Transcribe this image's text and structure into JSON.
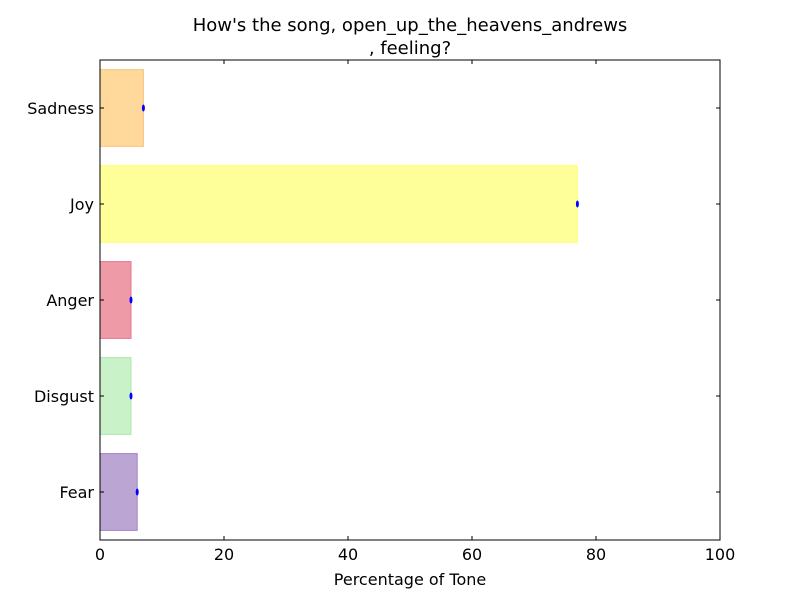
{
  "chart_data": {
    "type": "bar",
    "orientation": "horizontal",
    "title_lines": [
      "How's the song, open_up_the_heavens_andrews",
      ", feeling?"
    ],
    "xlabel": "Percentage of Tone",
    "ylabel": "",
    "xlim": [
      0,
      100
    ],
    "xticks": [
      "0",
      "20",
      "40",
      "60",
      "80",
      "100"
    ],
    "categories": [
      "Sadness",
      "Joy",
      "Anger",
      "Disgust",
      "Fear"
    ],
    "values": [
      7,
      77,
      5,
      5,
      6
    ],
    "colors": [
      "#ffd99b",
      "#ffff99",
      "#ee9aa7",
      "#c9f2c9",
      "#baa5d3"
    ],
    "edge_colors": [
      "#f9c27a",
      "#ffff77",
      "#e5748a",
      "#a9e8a9",
      "#a281c4"
    ],
    "marker_color": "#0000ff",
    "grid": false,
    "legend": "none"
  }
}
